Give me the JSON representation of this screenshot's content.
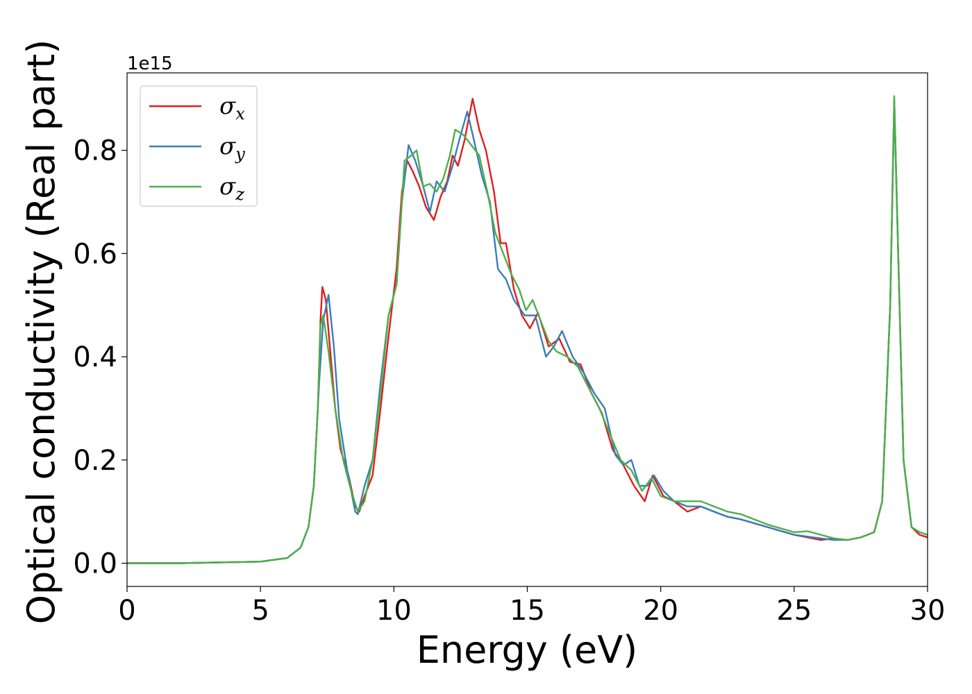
{
  "chart_data": {
    "type": "line",
    "xlabel": "Energy (eV)",
    "ylabel": "Optical conductivity (Real part)",
    "y_offset_label": "1e15",
    "xlim": [
      0,
      30
    ],
    "ylim": [
      -0.045,
      0.95
    ],
    "x_ticks": [
      0,
      5,
      10,
      15,
      20,
      25,
      30
    ],
    "x_tick_labels": [
      "0",
      "5",
      "10",
      "15",
      "20",
      "25",
      "30"
    ],
    "y_ticks": [
      0.0,
      0.2,
      0.4,
      0.6,
      0.8
    ],
    "y_tick_labels": [
      "0.0",
      "0.2",
      "0.4",
      "0.6",
      "0.8"
    ],
    "grid": false,
    "legend_position": "top-left",
    "series": [
      {
        "name": "σx",
        "legend_main": "σ",
        "legend_sub": "x",
        "color": "#e41a1c",
        "points": [
          [
            0,
            0.0
          ],
          [
            2,
            0.0
          ],
          [
            4,
            0.002
          ],
          [
            5,
            0.003
          ],
          [
            6,
            0.01
          ],
          [
            6.5,
            0.03
          ],
          [
            6.8,
            0.07
          ],
          [
            7.0,
            0.15
          ],
          [
            7.15,
            0.3
          ],
          [
            7.25,
            0.47
          ],
          [
            7.32,
            0.535
          ],
          [
            7.45,
            0.51
          ],
          [
            7.6,
            0.42
          ],
          [
            7.8,
            0.3
          ],
          [
            8.0,
            0.22
          ],
          [
            8.3,
            0.17
          ],
          [
            8.55,
            0.11
          ],
          [
            8.7,
            0.1
          ],
          [
            8.9,
            0.13
          ],
          [
            9.2,
            0.17
          ],
          [
            9.5,
            0.3
          ],
          [
            9.8,
            0.44
          ],
          [
            10.1,
            0.57
          ],
          [
            10.3,
            0.72
          ],
          [
            10.5,
            0.78
          ],
          [
            10.7,
            0.76
          ],
          [
            10.95,
            0.73
          ],
          [
            11.2,
            0.69
          ],
          [
            11.5,
            0.665
          ],
          [
            11.75,
            0.71
          ],
          [
            12.0,
            0.74
          ],
          [
            12.2,
            0.79
          ],
          [
            12.4,
            0.77
          ],
          [
            12.65,
            0.82
          ],
          [
            12.95,
            0.9
          ],
          [
            13.2,
            0.84
          ],
          [
            13.45,
            0.8
          ],
          [
            13.75,
            0.72
          ],
          [
            14.0,
            0.62
          ],
          [
            14.2,
            0.62
          ],
          [
            14.5,
            0.53
          ],
          [
            14.8,
            0.48
          ],
          [
            15.1,
            0.455
          ],
          [
            15.4,
            0.485
          ],
          [
            15.8,
            0.42
          ],
          [
            16.2,
            0.435
          ],
          [
            16.6,
            0.39
          ],
          [
            17.0,
            0.385
          ],
          [
            17.4,
            0.33
          ],
          [
            17.8,
            0.29
          ],
          [
            18.2,
            0.22
          ],
          [
            18.6,
            0.19
          ],
          [
            19.0,
            0.15
          ],
          [
            19.4,
            0.12
          ],
          [
            19.7,
            0.17
          ],
          [
            20.1,
            0.13
          ],
          [
            20.5,
            0.12
          ],
          [
            21.0,
            0.1
          ],
          [
            21.5,
            0.11
          ],
          [
            22.0,
            0.1
          ],
          [
            22.5,
            0.09
          ],
          [
            23.0,
            0.085
          ],
          [
            24.0,
            0.07
          ],
          [
            25.0,
            0.055
          ],
          [
            26.0,
            0.045
          ],
          [
            26.5,
            0.048
          ],
          [
            27.0,
            0.045
          ],
          [
            27.5,
            0.05
          ],
          [
            28.0,
            0.06
          ],
          [
            28.3,
            0.12
          ],
          [
            28.6,
            0.5
          ],
          [
            28.75,
            0.9
          ],
          [
            28.9,
            0.6
          ],
          [
            29.1,
            0.2
          ],
          [
            29.4,
            0.07
          ],
          [
            29.7,
            0.055
          ],
          [
            30,
            0.05
          ]
        ]
      },
      {
        "name": "σy",
        "legend_main": "σ",
        "legend_sub": "y",
        "color": "#377eb8",
        "points": [
          [
            0,
            0.0
          ],
          [
            2,
            0.0
          ],
          [
            4,
            0.002
          ],
          [
            5,
            0.003
          ],
          [
            6,
            0.01
          ],
          [
            6.5,
            0.03
          ],
          [
            6.8,
            0.07
          ],
          [
            7.0,
            0.15
          ],
          [
            7.2,
            0.35
          ],
          [
            7.35,
            0.47
          ],
          [
            7.55,
            0.52
          ],
          [
            7.75,
            0.42
          ],
          [
            7.95,
            0.28
          ],
          [
            8.25,
            0.18
          ],
          [
            8.55,
            0.1
          ],
          [
            8.65,
            0.095
          ],
          [
            8.9,
            0.15
          ],
          [
            9.2,
            0.2
          ],
          [
            9.5,
            0.35
          ],
          [
            9.8,
            0.48
          ],
          [
            10.1,
            0.54
          ],
          [
            10.3,
            0.7
          ],
          [
            10.55,
            0.81
          ],
          [
            10.8,
            0.78
          ],
          [
            11.1,
            0.73
          ],
          [
            11.35,
            0.68
          ],
          [
            11.6,
            0.74
          ],
          [
            11.9,
            0.72
          ],
          [
            12.2,
            0.77
          ],
          [
            12.45,
            0.82
          ],
          [
            12.75,
            0.875
          ],
          [
            13.0,
            0.82
          ],
          [
            13.3,
            0.75
          ],
          [
            13.6,
            0.7
          ],
          [
            13.9,
            0.57
          ],
          [
            14.2,
            0.55
          ],
          [
            14.5,
            0.51
          ],
          [
            14.9,
            0.48
          ],
          [
            15.3,
            0.48
          ],
          [
            15.7,
            0.4
          ],
          [
            16.0,
            0.42
          ],
          [
            16.3,
            0.45
          ],
          [
            16.7,
            0.4
          ],
          [
            17.1,
            0.37
          ],
          [
            17.5,
            0.33
          ],
          [
            17.9,
            0.3
          ],
          [
            18.3,
            0.21
          ],
          [
            18.6,
            0.19
          ],
          [
            18.9,
            0.2
          ],
          [
            19.2,
            0.15
          ],
          [
            19.5,
            0.15
          ],
          [
            19.75,
            0.17
          ],
          [
            20.1,
            0.14
          ],
          [
            20.5,
            0.12
          ],
          [
            21.0,
            0.11
          ],
          [
            21.5,
            0.11
          ],
          [
            22.0,
            0.1
          ],
          [
            22.5,
            0.09
          ],
          [
            23.0,
            0.085
          ],
          [
            24.0,
            0.07
          ],
          [
            25.0,
            0.055
          ],
          [
            26.0,
            0.048
          ],
          [
            26.5,
            0.045
          ],
          [
            27.0,
            0.045
          ],
          [
            27.5,
            0.05
          ],
          [
            28.0,
            0.06
          ],
          [
            28.3,
            0.12
          ],
          [
            28.6,
            0.5
          ],
          [
            28.75,
            0.89
          ],
          [
            28.9,
            0.6
          ],
          [
            29.1,
            0.2
          ],
          [
            29.4,
            0.07
          ],
          [
            29.7,
            0.06
          ],
          [
            30,
            0.055
          ]
        ]
      },
      {
        "name": "σz",
        "legend_main": "σ",
        "legend_sub": "z",
        "color": "#4daf4a",
        "points": [
          [
            0,
            0.0
          ],
          [
            2,
            0.0
          ],
          [
            4,
            0.002
          ],
          [
            5,
            0.003
          ],
          [
            6,
            0.01
          ],
          [
            6.5,
            0.03
          ],
          [
            6.8,
            0.07
          ],
          [
            7.0,
            0.15
          ],
          [
            7.15,
            0.3
          ],
          [
            7.25,
            0.46
          ],
          [
            7.35,
            0.48
          ],
          [
            7.55,
            0.41
          ],
          [
            7.8,
            0.3
          ],
          [
            8.1,
            0.2
          ],
          [
            8.4,
            0.14
          ],
          [
            8.65,
            0.1
          ],
          [
            8.9,
            0.12
          ],
          [
            9.2,
            0.2
          ],
          [
            9.5,
            0.33
          ],
          [
            9.8,
            0.48
          ],
          [
            10.1,
            0.54
          ],
          [
            10.4,
            0.78
          ],
          [
            10.65,
            0.79
          ],
          [
            10.85,
            0.8
          ],
          [
            11.1,
            0.73
          ],
          [
            11.35,
            0.735
          ],
          [
            11.6,
            0.72
          ],
          [
            11.85,
            0.745
          ],
          [
            12.1,
            0.79
          ],
          [
            12.3,
            0.84
          ],
          [
            12.6,
            0.83
          ],
          [
            12.9,
            0.81
          ],
          [
            13.2,
            0.79
          ],
          [
            13.5,
            0.72
          ],
          [
            13.8,
            0.64
          ],
          [
            14.1,
            0.6
          ],
          [
            14.4,
            0.56
          ],
          [
            14.7,
            0.53
          ],
          [
            14.95,
            0.49
          ],
          [
            15.2,
            0.51
          ],
          [
            15.5,
            0.47
          ],
          [
            15.8,
            0.43
          ],
          [
            16.1,
            0.41
          ],
          [
            16.5,
            0.4
          ],
          [
            16.9,
            0.38
          ],
          [
            17.3,
            0.34
          ],
          [
            17.7,
            0.3
          ],
          [
            18.1,
            0.25
          ],
          [
            18.5,
            0.2
          ],
          [
            18.9,
            0.18
          ],
          [
            19.3,
            0.14
          ],
          [
            19.65,
            0.165
          ],
          [
            20.0,
            0.13
          ],
          [
            20.5,
            0.12
          ],
          [
            21.0,
            0.12
          ],
          [
            21.5,
            0.12
          ],
          [
            22.0,
            0.11
          ],
          [
            22.5,
            0.1
          ],
          [
            23.0,
            0.095
          ],
          [
            24.0,
            0.075
          ],
          [
            25.0,
            0.06
          ],
          [
            25.5,
            0.062
          ],
          [
            26.0,
            0.055
          ],
          [
            26.5,
            0.048
          ],
          [
            27.0,
            0.045
          ],
          [
            27.5,
            0.05
          ],
          [
            28.0,
            0.06
          ],
          [
            28.3,
            0.12
          ],
          [
            28.6,
            0.5
          ],
          [
            28.75,
            0.905
          ],
          [
            28.9,
            0.6
          ],
          [
            29.1,
            0.2
          ],
          [
            29.4,
            0.07
          ],
          [
            29.7,
            0.06
          ],
          [
            30,
            0.055
          ]
        ]
      }
    ]
  }
}
